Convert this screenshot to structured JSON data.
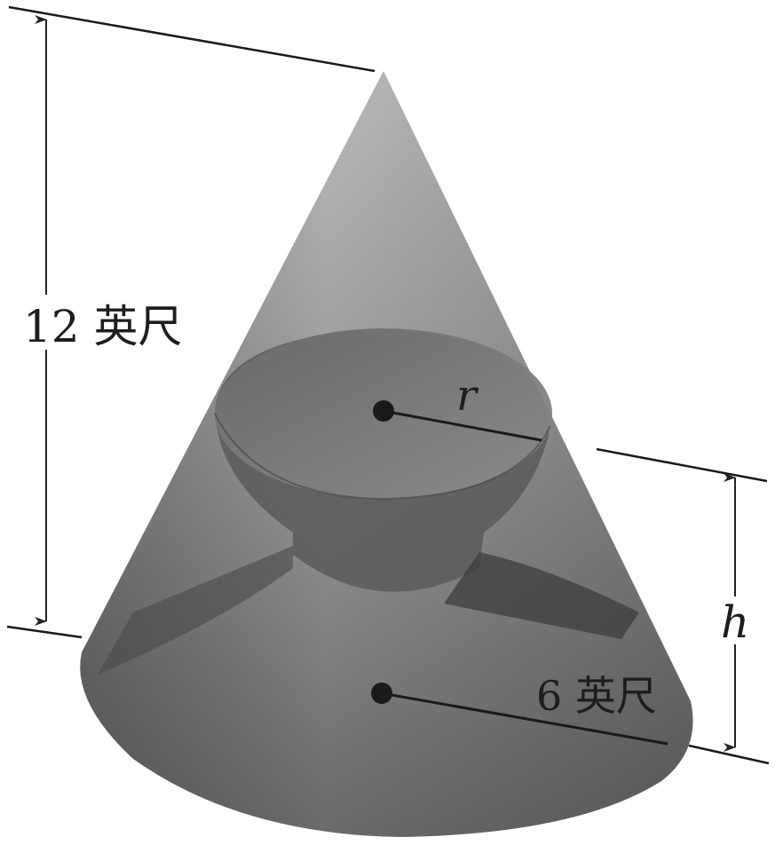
{
  "labels": {
    "cone_height": "12 英尺",
    "cylinder_radius": "r",
    "cylinder_height": "h",
    "cone_radius": "6 英尺"
  }
}
